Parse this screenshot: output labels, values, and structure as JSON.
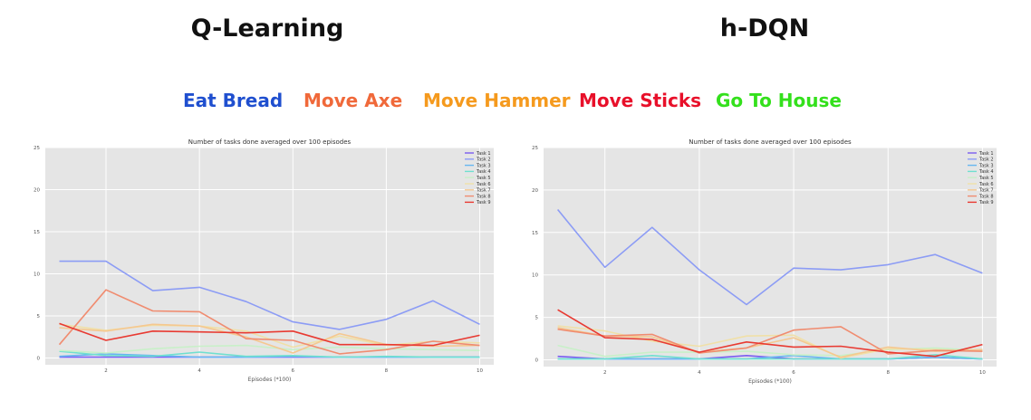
{
  "headlines": {
    "left": "Q-Learning",
    "right": "h-DQN"
  },
  "task_legend": [
    {
      "label": "Eat Bread",
      "color": "#1f4fcf"
    },
    {
      "label": "Move Axe",
      "color": "#f0693a"
    },
    {
      "label": "Move Hammer",
      "color": "#f59a1e"
    },
    {
      "label": "Move Sticks",
      "color": "#e8102a"
    },
    {
      "label": "Go To House",
      "color": "#34e01c"
    }
  ],
  "chart_data": [
    {
      "type": "line",
      "title": "Number of tasks done averaged over 100 episodes",
      "xlabel": "Episodes (*100)",
      "ylabel": "",
      "x": [
        1,
        2,
        3,
        4,
        5,
        6,
        7,
        8,
        9,
        10
      ],
      "xticks": [
        2,
        4,
        6,
        8,
        10
      ],
      "yticks": [
        0,
        5,
        10,
        15,
        20,
        25
      ],
      "xlim": [
        0.7,
        10.3
      ],
      "ylim": [
        -0.8,
        25
      ],
      "grid": true,
      "legend_position": "top-right",
      "series": [
        {
          "name": "Task 1",
          "color": "#7a5cf0",
          "values": [
            0.1,
            0.1,
            0.1,
            0.1,
            0.1,
            0.1,
            0.1,
            0.1,
            0.1,
            0.1
          ]
        },
        {
          "name": "Task 2",
          "color": "#8c9cf5",
          "values": [
            11.5,
            11.5,
            8.0,
            8.4,
            6.7,
            4.3,
            3.4,
            4.6,
            6.8,
            4.0
          ]
        },
        {
          "name": "Task 3",
          "color": "#67b6f0",
          "values": [
            0.2,
            0.5,
            0.3,
            0.1,
            0.1,
            0.2,
            0.1,
            0.1,
            0.1,
            0.1
          ]
        },
        {
          "name": "Task 4",
          "color": "#6fe0d0",
          "values": [
            0.8,
            0.3,
            0.2,
            0.7,
            0.2,
            0.3,
            0.1,
            0.2,
            0.1,
            0.1
          ]
        },
        {
          "name": "Task 5",
          "color": "#c8f0c8",
          "values": [
            0.9,
            0.6,
            1.1,
            1.4,
            1.5,
            1.0,
            1.3,
            1.1,
            1.0,
            0.9
          ]
        },
        {
          "name": "Task 6",
          "color": "#f0e0a8",
          "values": [
            4.0,
            3.3,
            3.9,
            3.8,
            3.2,
            1.3,
            2.6,
            1.5,
            2.0,
            1.8
          ]
        },
        {
          "name": "Task 7",
          "color": "#f5c890",
          "values": [
            3.6,
            3.2,
            4.0,
            3.8,
            2.5,
            0.6,
            2.9,
            1.6,
            1.4,
            1.5
          ]
        },
        {
          "name": "Task 8",
          "color": "#f08c70",
          "values": [
            1.6,
            8.1,
            5.6,
            5.5,
            2.3,
            2.1,
            0.5,
            1.0,
            2.0,
            1.5
          ]
        },
        {
          "name": "Task 9",
          "color": "#e83a32",
          "values": [
            4.1,
            2.1,
            3.2,
            3.1,
            3.0,
            3.2,
            1.6,
            1.6,
            1.5,
            2.7
          ]
        }
      ]
    },
    {
      "type": "line",
      "title": "Number of tasks done averaged over 100 episodes",
      "xlabel": "Episodes (*100)",
      "ylabel": "",
      "x": [
        1,
        2,
        3,
        4,
        5,
        6,
        7,
        8,
        9,
        10
      ],
      "xticks": [
        2,
        4,
        6,
        8,
        10
      ],
      "yticks": [
        0,
        5,
        10,
        15,
        20,
        25
      ],
      "xlim": [
        0.7,
        10.3
      ],
      "ylim": [
        -0.8,
        25
      ],
      "grid": true,
      "legend_position": "top-right",
      "series": [
        {
          "name": "Task 1",
          "color": "#7a5cf0",
          "values": [
            0.4,
            0.1,
            0.1,
            0.1,
            0.5,
            0.1,
            0.1,
            0.1,
            0.3,
            0.1
          ]
        },
        {
          "name": "Task 2",
          "color": "#8c9cf5",
          "values": [
            17.7,
            10.9,
            15.6,
            10.6,
            6.5,
            10.8,
            10.6,
            11.2,
            12.4,
            10.2
          ]
        },
        {
          "name": "Task 3",
          "color": "#67b6f0",
          "values": [
            0.1,
            0.1,
            0.1,
            0.1,
            0.1,
            0.5,
            0.1,
            0.1,
            0.3,
            0.1
          ]
        },
        {
          "name": "Task 4",
          "color": "#6fe0d0",
          "values": [
            0.1,
            0.1,
            0.5,
            0.1,
            0.1,
            0.1,
            0.1,
            0.1,
            0.6,
            0.1
          ]
        },
        {
          "name": "Task 5",
          "color": "#c8f0c8",
          "values": [
            1.7,
            0.4,
            0.9,
            0.9,
            1.0,
            0.6,
            0.5,
            1.2,
            1.4,
            1.1
          ]
        },
        {
          "name": "Task 6",
          "color": "#f0e0a8",
          "values": [
            4.0,
            3.4,
            2.2,
            1.6,
            2.8,
            2.9,
            0.2,
            1.3,
            1.2,
            1.0
          ]
        },
        {
          "name": "Task 7",
          "color": "#f5c890",
          "values": [
            3.8,
            2.8,
            2.7,
            0.9,
            1.4,
            2.6,
            0.3,
            1.5,
            1.0,
            1.2
          ]
        },
        {
          "name": "Task 8",
          "color": "#f08c70",
          "values": [
            3.6,
            2.8,
            3.0,
            0.8,
            1.4,
            3.5,
            3.9,
            0.7,
            1.1,
            1.0
          ]
        },
        {
          "name": "Task 9",
          "color": "#e83a32",
          "values": [
            5.9,
            2.6,
            2.4,
            0.9,
            2.1,
            1.5,
            1.6,
            0.9,
            0.4,
            1.8
          ]
        }
      ]
    }
  ]
}
